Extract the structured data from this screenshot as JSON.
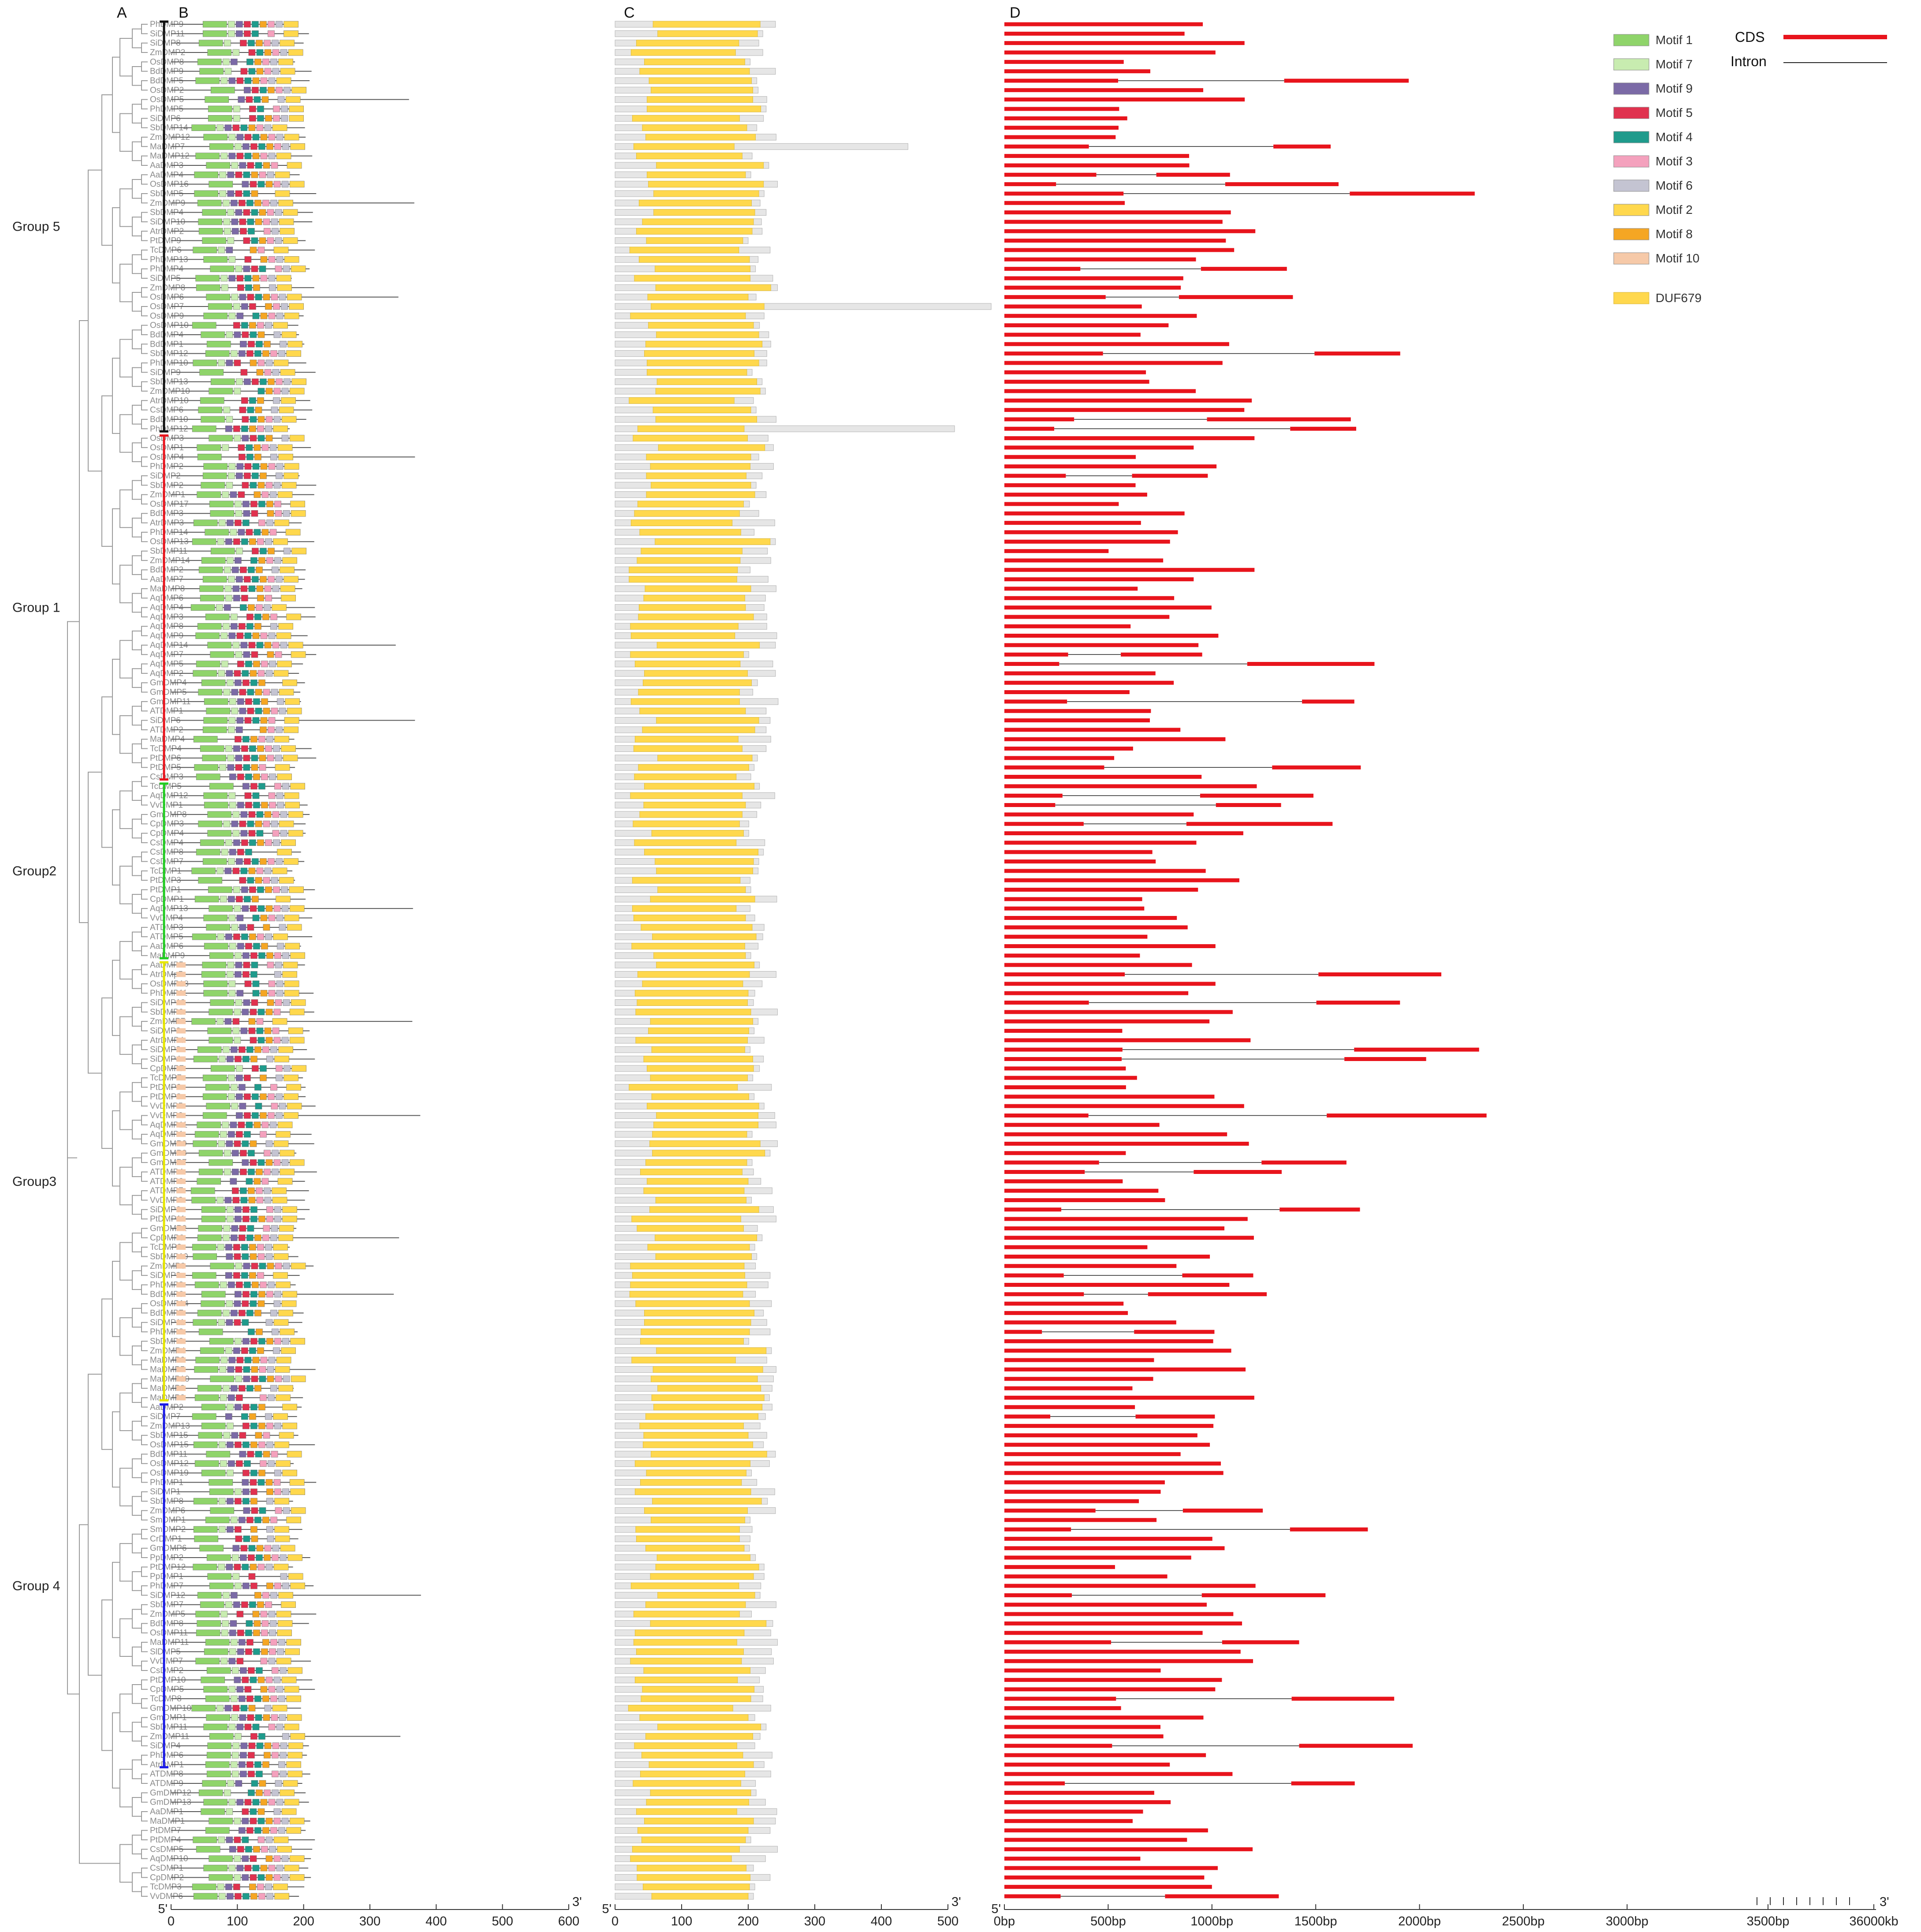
{
  "panels": {
    "a": "A",
    "b": "B",
    "c": "C",
    "d": "D"
  },
  "groups": [
    {
      "name": "Group 5",
      "color": "#111111",
      "start": 0,
      "end": 43
    },
    {
      "name": "Group 1",
      "color": "#e8141c",
      "start": 44,
      "end": 80
    },
    {
      "name": "Group2",
      "color": "#22cc22",
      "start": 81,
      "end": 99
    },
    {
      "name": "Group3",
      "color": "#e6e600",
      "start": 100,
      "end": 146
    },
    {
      "name": "Group 4",
      "color": "#1a1ae6",
      "start": 147,
      "end": 185
    }
  ],
  "genes": [
    "PhDMP9",
    "SiDMP11",
    "SiDMP8",
    "ZmDMP2",
    "OsDMP8",
    "BdDMP9",
    "BdDMP5",
    "OsDMP2",
    "OsDMP5",
    "PhDMP5",
    "SiDMP6",
    "SbDMP14",
    "ZmDMP12",
    "MaDMP7",
    "MaDMP12",
    "AaDMP3",
    "AaDMP4",
    "OsDMP16",
    "SbDMP5",
    "ZmDMP9",
    "SbDMP4",
    "SiDMP10",
    "AtrDMP2",
    "PtDMP9",
    "TcDMP6",
    "PhDMP13",
    "PhDMP4",
    "SiDMP5",
    "ZmDMP8",
    "OsDMP6",
    "OsDMP7",
    "OsDMP9",
    "OsDMP10",
    "BdDMP4",
    "BdDMP1",
    "SbDMP12",
    "PhDMP10",
    "SiDMP9",
    "SbDMP13",
    "ZmDMP10",
    "AtrDMP10",
    "CsDMP6",
    "BdDMP10",
    "PhDMP12",
    "OsDMP3",
    "OsDMP1",
    "OsDMP4",
    "PhDMP2",
    "SiDMP2",
    "SbDMP2",
    "ZmDMP1",
    "OsDMP17",
    "BdDMP3",
    "AtrDMP3",
    "PhDMP14",
    "OsDMP13",
    "SbDMP11",
    "ZmDMP14",
    "BdDMP2",
    "AaDMP7",
    "MaDMP8",
    "AqDMP6",
    "AqDMP4",
    "AqDMP3",
    "AqDMP8",
    "AqDMP9",
    "AqDMP14",
    "AqDMP7",
    "AqDMP5",
    "AqDMP2",
    "GmDMP4",
    "GmDMP5",
    "GmDMP11",
    "ATDMP1",
    "SiDMP6",
    "ATDMP2",
    "MaDMP4",
    "TcDMP4",
    "PtDMP6",
    "PtDMP5",
    "CsDMP3",
    "TcDMP5",
    "AqDMP12",
    "VvDMP1",
    "GmDMP8",
    "CpDMP3",
    "CpDMP4",
    "CsDMP4",
    "CsDMP8",
    "CsDMP7",
    "TcDMP1",
    "PtDMP3",
    "PtDMP1",
    "CpDMP1",
    "AqDMP13",
    "VvDMP4",
    "ATDMP3",
    "ATDMP5",
    "AaDMP6",
    "MaDMP9",
    "AaDMP5",
    "AtrDMp5",
    "OsDMP18",
    "PhDMP11",
    "SiDMP13",
    "SbDMP9",
    "ZmDMP7",
    "SiDMP2",
    "AtrDMP4",
    "SiDMP3",
    "SiDMP4",
    "CpDMP7",
    "TcDMP7",
    "PtDMP2",
    "PtDMP8",
    "VvDMP5",
    "VvDMP2",
    "AqDMP11",
    "AqDMP1",
    "GmDMP9",
    "GmDMP3",
    "GmDMP7",
    "ATDMP4",
    "ATDMP6",
    "ATDMP7",
    "VvDMP3",
    "SiDMP6",
    "PtDMP11",
    "GmDMP2",
    "CpDMP6",
    "TcDMP2",
    "SbDMP10",
    "ZmDMP3",
    "SiDMP3",
    "PhDMP3",
    "BdDMP6",
    "OsDMP14",
    "BdDMP7",
    "SiDMP11",
    "PhDMP8",
    "SbDMP3",
    "ZmDMP4",
    "MaDMP6",
    "MaDMP5",
    "MaDMP10",
    "MaDMP3",
    "MaDMP2",
    "AaDMP2",
    "SiDMP7",
    "ZmDMP13",
    "SbDMP15",
    "OsDMP15",
    "BdDMP11",
    "OsDMP12",
    "OsDMP19",
    "PhDMP1",
    "SiDMP1",
    "SbDMP8",
    "ZmDMP6",
    "SmDMP1",
    "SmDMP2",
    "CrDMP1",
    "GmDMP6",
    "PpDMP2",
    "PtDMP12",
    "PpDMP1",
    "PhDMP7",
    "SiDMP12",
    "SbDMP7",
    "ZmDMP5",
    "BdDMP8",
    "OsDMP11",
    "MaDMP11",
    "SlDMP5",
    "VvDMP7",
    "CsDMP2",
    "PtDMP10",
    "CpDMP5",
    "TcDMP8",
    "GmDMP10",
    "GmDMP1",
    "SbDMP11",
    "ZmDMP11",
    "SiDMP4",
    "PhDMP6",
    "AtrDMP1",
    "ATDMP8",
    "ATDMP9",
    "GmDMP12",
    "GmDMP13",
    "AaDMP1",
    "MaDMP1",
    "PtDMP7",
    "PtDMP4",
    "CsDMP5",
    "AqDMP10",
    "CsDMP1",
    "CpDMP2",
    "TcDMP3",
    "VvDMP6"
  ],
  "b_axis": {
    "ticks": [
      "0",
      "100",
      "200",
      "300",
      "400",
      "500",
      "600"
    ],
    "end_left": "5'",
    "end_right": "3'"
  },
  "c_axis": {
    "ticks": [
      "0",
      "100",
      "200",
      "300",
      "400",
      "500"
    ],
    "end_left": "5'",
    "end_right": "3'"
  },
  "d_axis": {
    "ticks": [
      "0bp",
      "500bp",
      "1000bp",
      "1500bp",
      "2000bp",
      "2500bp",
      "3000bp",
      "3500bp",
      "36000kb"
    ],
    "end_left": "5'",
    "end_right": "3'"
  },
  "legend": {
    "motifs": [
      {
        "label": "Motif 1",
        "color": "#8fd46a"
      },
      {
        "label": "Motif 7",
        "color": "#c8ecb0"
      },
      {
        "label": "Motif 9",
        "color": "#7b6aa6"
      },
      {
        "label": "Motif 5",
        "color": "#e0324f"
      },
      {
        "label": "Motif 4",
        "color": "#1f9b8c"
      },
      {
        "label": "Motif 3",
        "color": "#f4a1bd"
      },
      {
        "label": "Motif 6",
        "color": "#c4c4d2"
      },
      {
        "label": "Motif 2",
        "color": "#ffd84d"
      },
      {
        "label": "Motif 8",
        "color": "#f5a623"
      },
      {
        "label": "Motif 10",
        "color": "#f6c9a8"
      }
    ],
    "domain": {
      "label": "DUF679",
      "color": "#ffd84d"
    },
    "cds": {
      "label": "CDS",
      "color": "#e8141c"
    },
    "intron": {
      "label": "Intron",
      "color": "#222222"
    }
  }
}
